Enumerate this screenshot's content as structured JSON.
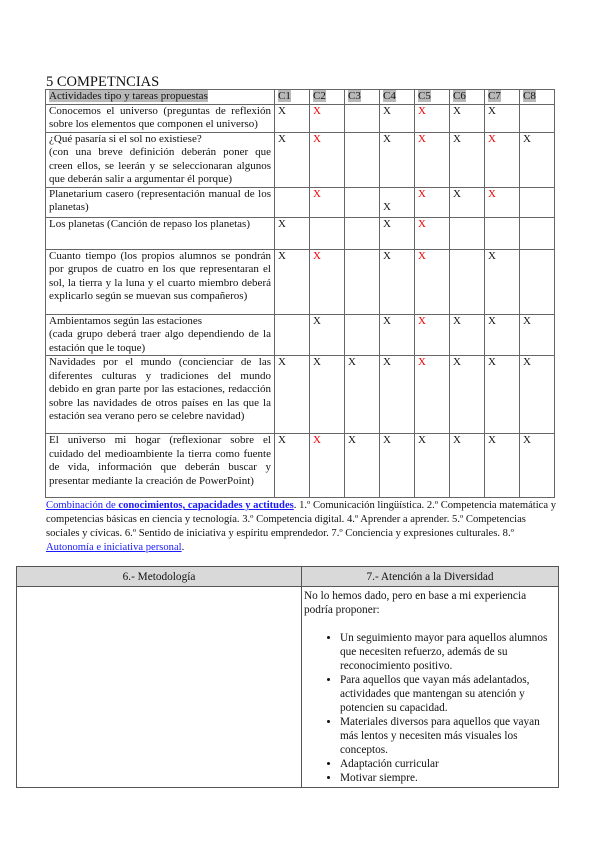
{
  "title": "5 COMPETNCIAS",
  "table": {
    "header": [
      "Actividades tipo y tareas propuestas",
      "C1",
      "C2",
      "C3",
      "C4",
      "C5",
      "C6",
      "C7",
      "C8"
    ],
    "rows": [
      {
        "activity": "Conocemos el universo (preguntas de reflexión sobre los elementos que componen el universo)",
        "cells": [
          "X",
          "X",
          "",
          "X",
          "X",
          "X",
          "X",
          ""
        ],
        "red": [
          false,
          true,
          false,
          false,
          true,
          false,
          false,
          false
        ]
      },
      {
        "activity": "¿Qué pasaría si el sol no existiese?\n(con una breve definición deberán poner que creen ellos, se leerán y se seleccionaran algunos que deberán salir a argumentar él porque)",
        "cells": [
          "X",
          "X",
          "",
          "X",
          "X",
          "X",
          "X",
          "X"
        ],
        "red": [
          false,
          true,
          false,
          false,
          true,
          false,
          true,
          false
        ]
      },
      {
        "activity": "Planetarium casero (representación manual de los planetas)",
        "cells": [
          "",
          "X",
          "",
          "X",
          "X",
          "X",
          "X",
          ""
        ],
        "red": [
          false,
          true,
          false,
          false,
          true,
          false,
          true,
          false
        ]
      },
      {
        "activity": "Los planetas (Canción de repaso los planetas)",
        "cells": [
          "X",
          "",
          "",
          "X",
          "X",
          "",
          "",
          ""
        ],
        "red": [
          false,
          false,
          false,
          false,
          true,
          false,
          false,
          false
        ]
      },
      {
        "activity": "Cuanto tiempo (los propios alumnos se pondrán por grupos de cuatro en los que representaran el sol, la tierra y la luna y el cuarto miembro deberá explicarlo según se muevan sus compañeros)",
        "cells": [
          "X",
          "X",
          "",
          "X",
          "X",
          "",
          "X",
          ""
        ],
        "red": [
          false,
          true,
          false,
          false,
          true,
          false,
          false,
          false
        ]
      },
      {
        "activity": "Ambientamos según las estaciones\n(cada grupo deberá traer algo dependiendo de la estación que le toque)",
        "cells": [
          "",
          "X",
          "",
          "X",
          "X",
          "X",
          "X",
          "X"
        ],
        "red": [
          false,
          false,
          false,
          false,
          true,
          false,
          false,
          false
        ]
      },
      {
        "activity": "Navidades por el mundo (concienciar de las diferentes culturas y tradiciones del mundo debido en gran parte por las estaciones, redacción sobre las navidades de otros países en las que la estación sea verano pero se celebre navidad)",
        "cells": [
          "X",
          "X",
          "X",
          "X",
          "X",
          "X",
          "X",
          "X"
        ],
        "red": [
          false,
          false,
          false,
          false,
          true,
          false,
          false,
          false
        ]
      },
      {
        "activity": "El universo mi hogar (reflexionar sobre el cuidado del medioambiente la tierra como fuente de vida, información que deberán buscar y presentar mediante la creación de PowerPoint)",
        "cells": [
          "X",
          "X",
          "X",
          "X",
          "X",
          "X",
          "X",
          "X"
        ],
        "red": [
          false,
          true,
          false,
          false,
          false,
          false,
          false,
          false
        ]
      }
    ]
  },
  "note": {
    "link1_a": "Combinación de ",
    "link1_b": "conocimientos, capacidades y actitudes",
    "text": ". 1.º Comunicación lingüística. 2.º Competencia matemática y competencias básicas en ciencia y tecnología. 3.º Competencia digital. 4.º Aprender a aprender. 5.º Competencias sociales y cívicas. 6.º Sentido de iniciativa y espíritu emprendedor. 7.º Conciencia y expresiones culturales. 8.º ",
    "link2": "Autonomía e iniciativa personal",
    "end": "."
  },
  "bottom": {
    "col1_header": "6.- Metodología",
    "col2_header": "7.- Atención a la Diversidad",
    "intro": " No lo hemos dado, pero en base a mi experiencia podría proponer:",
    "items": [
      "Un seguimiento mayor para aquellos alumnos que necesiten refuerzo, además de su reconocimiento positivo.",
      "Para aquellos que vayan más adelantados, actividades que mantengan su atención y potencien su capacidad.",
      "Materiales diversos para aquellos que vayan más lentos y necesiten más visuales los conceptos.",
      "Adaptación curricular",
      "Motivar siempre."
    ]
  },
  "colors": {
    "red_mark": "#e00000",
    "link": "#1a1aff",
    "header_shade": "#b9b9b9"
  }
}
